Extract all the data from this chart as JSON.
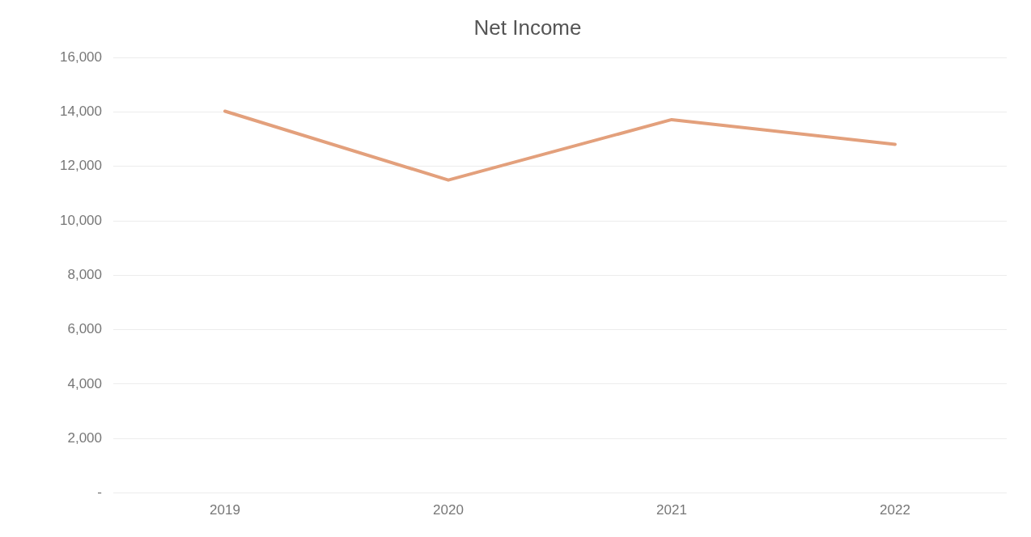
{
  "chart_data": {
    "type": "line",
    "title": "Net Income",
    "categories": [
      "2019",
      "2020",
      "2021",
      "2022"
    ],
    "series": [
      {
        "color": "#e3a07c",
        "values": [
          14030,
          11500,
          13720,
          12810
        ]
      }
    ],
    "ylim": [
      0,
      16000
    ],
    "yticks": [
      {
        "value": 0,
        "label": "-"
      },
      {
        "value": 2000,
        "label": "2,000"
      },
      {
        "value": 4000,
        "label": "4,000"
      },
      {
        "value": 6000,
        "label": "6,000"
      },
      {
        "value": 8000,
        "label": "8,000"
      },
      {
        "value": 10000,
        "label": "10,000"
      },
      {
        "value": 12000,
        "label": "12,000"
      },
      {
        "value": 14000,
        "label": "14,000"
      },
      {
        "value": 16000,
        "label": "16,000"
      }
    ],
    "grid": "y",
    "legend": false,
    "marker": "none",
    "line_style": "solid"
  }
}
